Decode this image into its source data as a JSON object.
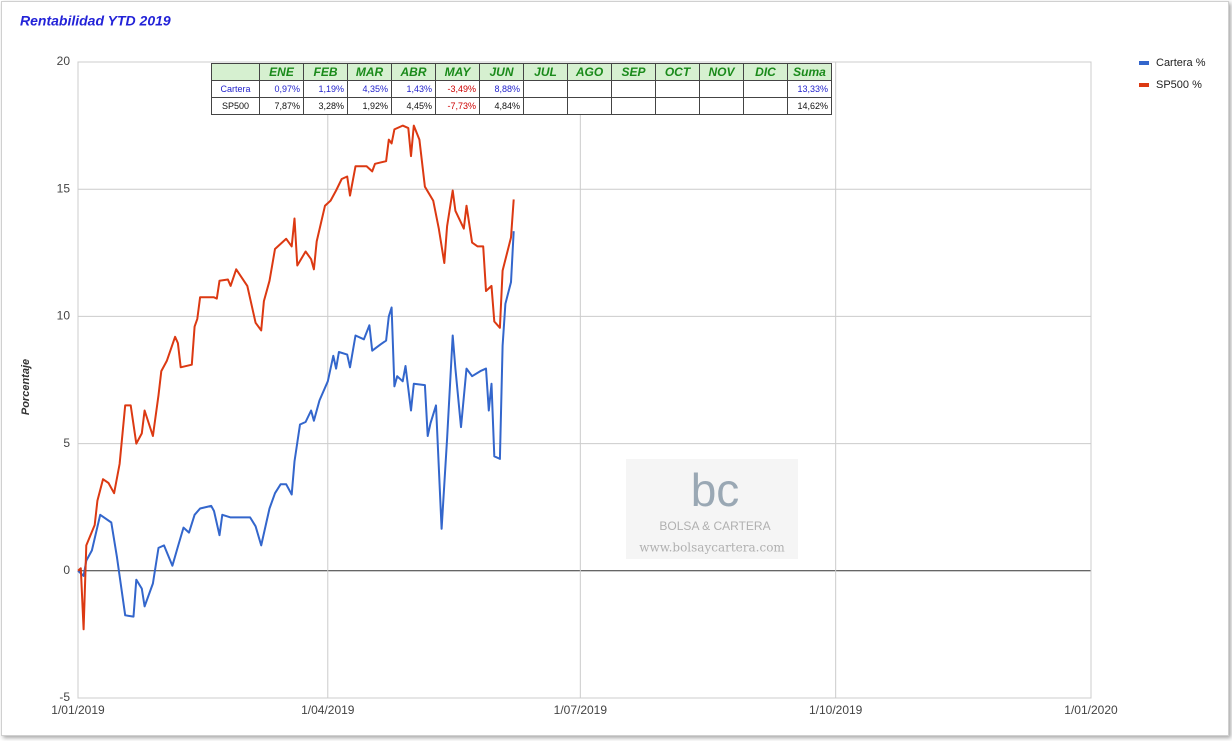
{
  "chart_data": {
    "type": "line",
    "title": "Rentabilidad YTD 2019",
    "y_label": "Porcentaje",
    "xlim": [
      "2019-01-01",
      "2020-01-01"
    ],
    "xticks": [
      {
        "value": "2019-01-01",
        "label": "1/01/2019"
      },
      {
        "value": "2019-04-01",
        "label": "1/04/2019"
      },
      {
        "value": "2019-07-01",
        "label": "1/07/2019"
      },
      {
        "value": "2019-10-01",
        "label": "1/10/2019"
      },
      {
        "value": "2020-01-01",
        "label": "1/01/2020"
      }
    ],
    "ylim": [
      -5,
      20
    ],
    "yticks": [
      -5,
      0,
      5,
      10,
      15,
      20
    ],
    "grid": true,
    "legend": "right",
    "series": [
      {
        "name": "Cartera %",
        "color": "#3366cc",
        "x": [
          "2019-01-01",
          "2019-01-03",
          "2019-01-04",
          "2019-01-06",
          "2019-01-09",
          "2019-01-13",
          "2019-01-15",
          "2019-01-16",
          "2019-01-18",
          "2019-01-21",
          "2019-01-22",
          "2019-01-24",
          "2019-01-25",
          "2019-01-28",
          "2019-01-30",
          "2019-02-01",
          "2019-02-04",
          "2019-02-06",
          "2019-02-08",
          "2019-02-10",
          "2019-02-12",
          "2019-02-14",
          "2019-02-18",
          "2019-02-19",
          "2019-02-21",
          "2019-02-22",
          "2019-02-25",
          "2019-03-04",
          "2019-03-06",
          "2019-03-08",
          "2019-03-11",
          "2019-03-13",
          "2019-03-15",
          "2019-03-17",
          "2019-03-19",
          "2019-03-20",
          "2019-03-22",
          "2019-03-24",
          "2019-03-26",
          "2019-03-27",
          "2019-03-29",
          "2019-04-01",
          "2019-04-03",
          "2019-04-04",
          "2019-04-05",
          "2019-04-08",
          "2019-04-09",
          "2019-04-11",
          "2019-04-14",
          "2019-04-16",
          "2019-04-17",
          "2019-04-20",
          "2019-04-22",
          "2019-04-23",
          "2019-04-24",
          "2019-04-25",
          "2019-04-26",
          "2019-04-28",
          "2019-04-29",
          "2019-05-01",
          "2019-05-02",
          "2019-05-06",
          "2019-05-07",
          "2019-05-08",
          "2019-05-10",
          "2019-05-12",
          "2019-05-14",
          "2019-05-16",
          "2019-05-17",
          "2019-05-19",
          "2019-05-21",
          "2019-05-23",
          "2019-05-26",
          "2019-05-28",
          "2019-05-29",
          "2019-05-30",
          "2019-05-31",
          "2019-06-02",
          "2019-06-03",
          "2019-06-04",
          "2019-06-06",
          "2019-06-07"
        ],
        "values": [
          0,
          -0.2,
          0.4,
          0.8,
          2.2,
          1.9,
          0.55,
          -0.2,
          -1.75,
          -1.8,
          -0.35,
          -0.7,
          -1.4,
          -0.5,
          0.9,
          1.0,
          0.2,
          0.95,
          1.7,
          1.5,
          2.2,
          2.45,
          2.55,
          2.35,
          1.4,
          2.2,
          2.1,
          2.1,
          1.75,
          1.0,
          2.45,
          3.05,
          3.4,
          3.4,
          3.0,
          4.3,
          5.75,
          5.85,
          6.3,
          5.9,
          6.7,
          7.45,
          8.45,
          7.95,
          8.6,
          8.5,
          8.0,
          9.25,
          9.1,
          9.65,
          8.65,
          8.9,
          9.05,
          10.0,
          10.35,
          7.25,
          7.65,
          7.45,
          8.05,
          6.3,
          7.35,
          7.3,
          5.3,
          5.8,
          6.5,
          1.65,
          5.2,
          9.25,
          7.95,
          5.65,
          7.95,
          7.65,
          7.85,
          7.95,
          6.3,
          7.35,
          4.5,
          4.4,
          8.85,
          10.5,
          11.35,
          13.35
        ]
      },
      {
        "name": "SP500 %",
        "color": "#dc3912",
        "x": [
          "2019-01-01",
          "2019-01-02",
          "2019-01-03",
          "2019-01-04",
          "2019-01-07",
          "2019-01-08",
          "2019-01-10",
          "2019-01-12",
          "2019-01-14",
          "2019-01-16",
          "2019-01-18",
          "2019-01-20",
          "2019-01-22",
          "2019-01-24",
          "2019-01-25",
          "2019-01-28",
          "2019-01-30",
          "2019-01-31",
          "2019-02-02",
          "2019-02-05",
          "2019-02-06",
          "2019-02-07",
          "2019-02-11",
          "2019-02-12",
          "2019-02-13",
          "2019-02-14",
          "2019-02-19",
          "2019-02-20",
          "2019-02-21",
          "2019-02-24",
          "2019-02-25",
          "2019-02-27",
          "2019-03-03",
          "2019-03-06",
          "2019-03-08",
          "2019-03-09",
          "2019-03-11",
          "2019-03-13",
          "2019-03-17",
          "2019-03-19",
          "2019-03-20",
          "2019-03-21",
          "2019-03-24",
          "2019-03-26",
          "2019-03-27",
          "2019-03-28",
          "2019-03-31",
          "2019-04-02",
          "2019-04-04",
          "2019-04-06",
          "2019-04-08",
          "2019-04-09",
          "2019-04-11",
          "2019-04-15",
          "2019-04-17",
          "2019-04-18",
          "2019-04-22",
          "2019-04-23",
          "2019-04-24",
          "2019-04-25",
          "2019-04-28",
          "2019-04-30",
          "2019-05-01",
          "2019-05-02",
          "2019-05-04",
          "2019-05-06",
          "2019-05-09",
          "2019-05-11",
          "2019-05-13",
          "2019-05-14",
          "2019-05-16",
          "2019-05-17",
          "2019-05-20",
          "2019-05-21",
          "2019-05-23",
          "2019-05-25",
          "2019-05-27",
          "2019-05-28",
          "2019-05-30",
          "2019-05-31",
          "2019-06-02",
          "2019-06-03",
          "2019-06-06",
          "2019-06-07"
        ],
        "values": [
          0,
          0.1,
          -2.3,
          1.0,
          1.8,
          2.75,
          3.6,
          3.45,
          3.05,
          4.2,
          6.5,
          6.5,
          5.0,
          5.4,
          6.3,
          5.3,
          6.9,
          7.85,
          8.25,
          9.2,
          8.95,
          8.0,
          8.1,
          9.6,
          9.9,
          10.75,
          10.75,
          10.7,
          11.4,
          11.45,
          11.2,
          11.85,
          11.2,
          9.75,
          9.45,
          10.6,
          11.4,
          12.65,
          13.05,
          12.75,
          13.85,
          12.0,
          12.55,
          12.25,
          11.85,
          12.95,
          14.35,
          14.55,
          14.95,
          15.4,
          15.5,
          14.75,
          15.9,
          15.9,
          15.7,
          16.0,
          16.1,
          16.95,
          16.8,
          17.35,
          17.5,
          17.4,
          16.3,
          17.5,
          16.95,
          15.1,
          14.55,
          13.45,
          12.1,
          13.55,
          14.95,
          14.15,
          13.45,
          14.35,
          12.9,
          12.75,
          12.75,
          11.0,
          11.2,
          9.8,
          9.55,
          11.8,
          13.1,
          14.6
        ]
      }
    ]
  },
  "table": {
    "header": [
      "ENE",
      "FEB",
      "MAR",
      "ABR",
      "MAY",
      "JUN",
      "JUL",
      "AGO",
      "SEP",
      "OCT",
      "NOV",
      "DIC",
      "Suma"
    ],
    "negative_color": "#cc0000",
    "rows": [
      {
        "label": "Cartera",
        "color": "#2222cc",
        "cells": [
          "0,97%",
          "1,19%",
          "4,35%",
          "1,43%",
          "-3,49%",
          "8,88%",
          null,
          null,
          null,
          null,
          null,
          null,
          "13,33%"
        ]
      },
      {
        "label": "SP500",
        "color": "#111111",
        "cells": [
          "7,87%",
          "3,28%",
          "1,92%",
          "4,45%",
          "-7,73%",
          "4,84%",
          null,
          null,
          null,
          null,
          null,
          null,
          "14,62%"
        ]
      }
    ]
  },
  "watermark": {
    "logo": "bc",
    "name": "BOLSA & CARTERA",
    "url": "www.bolsaycartera.com"
  }
}
